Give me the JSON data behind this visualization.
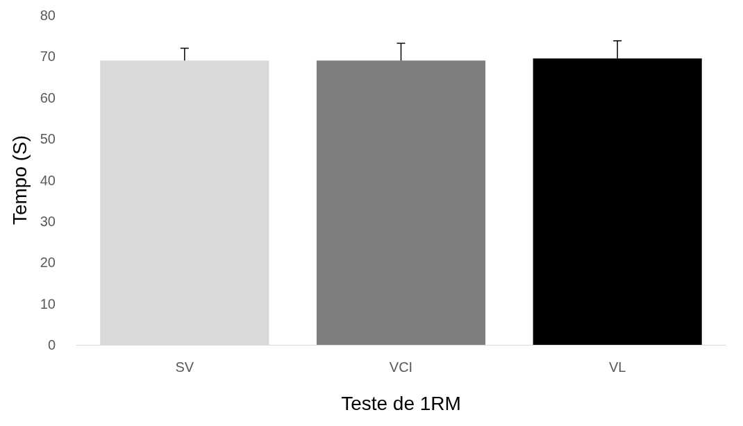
{
  "chart_data": {
    "type": "bar",
    "xlabel": "Teste de 1RM",
    "ylabel": "Tempo (S)",
    "categories": [
      "SV",
      "VCI",
      "VL"
    ],
    "values": [
      69.0,
      69.0,
      69.5
    ],
    "colors": [
      "#d9d9d9",
      "#7f7f7f",
      "#000000"
    ],
    "errors": [
      [
        69.0,
        72.0
      ],
      [
        69.0,
        73.2
      ],
      [
        69.5,
        73.8
      ]
    ],
    "ylim": [
      0,
      80
    ],
    "yticks": [
      0,
      10,
      20,
      30,
      40,
      50,
      60,
      70,
      80
    ],
    "grid": false
  }
}
